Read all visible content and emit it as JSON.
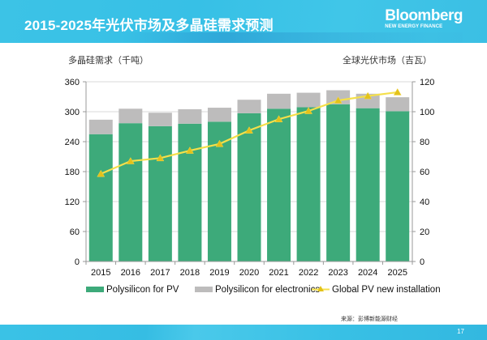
{
  "slide": {
    "title": "2015-2025年光伏市场及多晶硅需求预测",
    "logo_line1": "Bloomberg",
    "logo_line2": "NEW ENERGY FINANCE",
    "source": "来源：彭博新能源财经",
    "page_number": "17"
  },
  "chart_data": {
    "type": "bar",
    "stacked": true,
    "title": "2015-2025年光伏市场及多晶硅需求预测",
    "categories": [
      "2015",
      "2016",
      "2017",
      "2018",
      "2019",
      "2020",
      "2021",
      "2022",
      "2023",
      "2024",
      "2025"
    ],
    "ylabel": "多晶硅需求（千吨）",
    "y2label": "全球光伏市场（吉瓦）",
    "ylim": [
      0,
      360
    ],
    "yticks": [
      0,
      60,
      120,
      180,
      240,
      300,
      360
    ],
    "y2lim": [
      0,
      120
    ],
    "y2ticks": [
      0,
      20,
      40,
      60,
      80,
      100,
      120
    ],
    "grid": true,
    "legend_position": "bottom",
    "series": [
      {
        "name": "Polysilicon for PV",
        "type": "bar",
        "axis": "left",
        "color": "#3daa7a",
        "values": [
          255,
          277,
          271,
          276,
          280,
          297,
          306,
          309,
          315,
          307,
          301
        ]
      },
      {
        "name": "Polysilicon for electronics",
        "type": "bar",
        "axis": "left",
        "color": "#bdbcbc",
        "values": [
          29,
          29,
          27,
          29,
          28,
          27,
          30,
          29,
          28,
          29,
          28
        ]
      },
      {
        "name": "Global PV new installation",
        "type": "line",
        "axis": "right",
        "color": "#f5e04a",
        "marker_color": "#e3c21a",
        "values": [
          58.5,
          67,
          69,
          74,
          78.5,
          87.5,
          95,
          100.5,
          107.5,
          110.5,
          113
        ]
      }
    ]
  }
}
